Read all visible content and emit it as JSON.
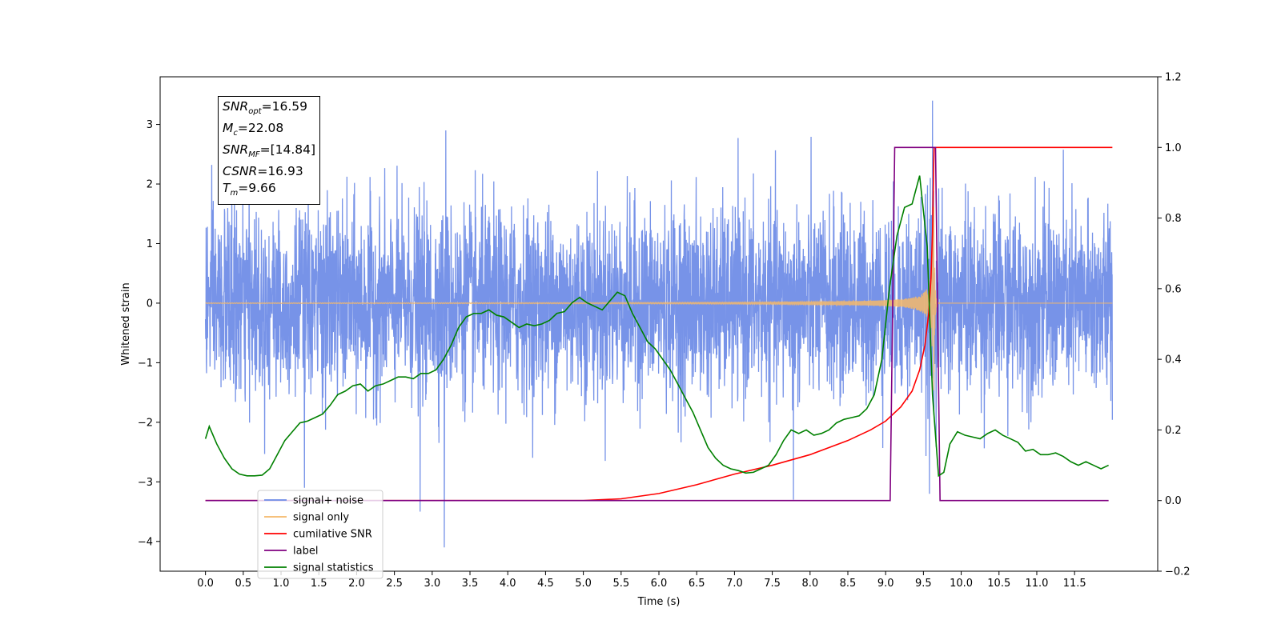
{
  "chart_data": {
    "type": "line",
    "xlabel": "Time (s)",
    "ylabel_left": "Whitened strain",
    "xlim": [
      -0.6,
      12.6
    ],
    "ylim_left": [
      -4.5,
      3.8
    ],
    "ylim_right": [
      -0.2,
      1.2
    ],
    "x_ticks": [
      0.0,
      0.5,
      1.0,
      1.5,
      2.0,
      2.5,
      3.0,
      3.5,
      4.0,
      4.5,
      5.0,
      5.5,
      6.0,
      6.5,
      7.0,
      7.5,
      8.0,
      8.5,
      9.0,
      9.5,
      10.0,
      10.5,
      11.0,
      11.5
    ],
    "x_tick_labels": [
      "0.0",
      "0.5",
      "1.0",
      "1.5",
      "2.0",
      "2.5",
      "3.0",
      "3.5",
      "4.0",
      "4.5",
      "5.0",
      "5.5",
      "6.0",
      "6.5",
      "7.0",
      "7.5",
      "8.0",
      "8.5",
      "9.0",
      "9.5",
      "10.0",
      "10.5",
      "11.0",
      "11.5"
    ],
    "y_left_ticks": [
      -4,
      -3,
      -2,
      -1,
      0,
      1,
      2,
      3
    ],
    "y_left_tick_labels": [
      "−4",
      "−3",
      "−2",
      "−1",
      "0",
      "1",
      "2",
      "3"
    ],
    "y_right_ticks": [
      -0.2,
      0.0,
      0.2,
      0.4,
      0.6,
      0.8,
      1.0,
      1.2
    ],
    "y_right_tick_labels": [
      "−0.2",
      "0.0",
      "0.2",
      "0.4",
      "0.6",
      "0.8",
      "1.0",
      "1.2"
    ],
    "grid": false,
    "legend_position": "bottom-left",
    "colors": {
      "noise": "#6b8ae6",
      "signal": "#f5b86a",
      "cumsnr": "#ff0000",
      "label": "#800080",
      "stats": "#008000"
    },
    "series": [
      {
        "name": "signal+ noise",
        "axis": "left",
        "color": "#6b8ae6",
        "t_start": 0.0,
        "t_end": 12.0,
        "envelope_approx": [
          -2.0,
          2.0
        ],
        "min": -4.1,
        "max": 3.4
      },
      {
        "name": "signal only",
        "axis": "left",
        "color": "#f5b86a",
        "t_start": 0.0,
        "t_end": 12.0,
        "merger_time": 9.63,
        "peak": 3.15,
        "trough": -3.25
      },
      {
        "name": "cumilative SNR",
        "axis": "right",
        "color": "#ff0000",
        "x": [
          0.0,
          5.0,
          5.5,
          6.0,
          6.5,
          7.0,
          7.5,
          8.0,
          8.5,
          8.8,
          9.0,
          9.2,
          9.35,
          9.45,
          9.52,
          9.57,
          9.6,
          9.62,
          9.64,
          12.0
        ],
        "y": [
          0.0,
          0.0,
          0.005,
          0.02,
          0.045,
          0.075,
          0.1,
          0.13,
          0.17,
          0.2,
          0.225,
          0.265,
          0.31,
          0.37,
          0.44,
          0.53,
          0.63,
          0.76,
          1.0,
          1.0
        ]
      },
      {
        "name": "label",
        "axis": "right",
        "color": "#800080",
        "x": [
          0.0,
          9.06,
          9.12,
          9.66,
          9.72,
          11.95
        ],
        "y": [
          0.0,
          0.0,
          1.0,
          1.0,
          0.0,
          0.0
        ]
      },
      {
        "name": "signal statistics",
        "axis": "right",
        "color": "#008000",
        "x": [
          0.0,
          0.05,
          0.15,
          0.25,
          0.35,
          0.45,
          0.55,
          0.65,
          0.75,
          0.85,
          0.95,
          1.05,
          1.15,
          1.25,
          1.35,
          1.45,
          1.55,
          1.65,
          1.75,
          1.85,
          1.95,
          2.05,
          2.15,
          2.25,
          2.35,
          2.45,
          2.55,
          2.65,
          2.75,
          2.85,
          2.95,
          3.05,
          3.15,
          3.25,
          3.35,
          3.45,
          3.55,
          3.65,
          3.75,
          3.85,
          3.95,
          4.05,
          4.15,
          4.25,
          4.35,
          4.45,
          4.55,
          4.65,
          4.75,
          4.85,
          4.95,
          5.05,
          5.15,
          5.25,
          5.35,
          5.45,
          5.55,
          5.65,
          5.75,
          5.85,
          5.95,
          6.05,
          6.15,
          6.25,
          6.35,
          6.45,
          6.55,
          6.65,
          6.75,
          6.85,
          6.95,
          7.05,
          7.15,
          7.25,
          7.35,
          7.45,
          7.55,
          7.65,
          7.75,
          7.85,
          7.95,
          8.05,
          8.15,
          8.25,
          8.35,
          8.45,
          8.55,
          8.65,
          8.75,
          8.85,
          8.95,
          9.05,
          9.15,
          9.25,
          9.35,
          9.45,
          9.55,
          9.62,
          9.7,
          9.77,
          9.85,
          9.95,
          10.05,
          10.15,
          10.25,
          10.35,
          10.45,
          10.55,
          10.65,
          10.75,
          10.85,
          10.95,
          11.05,
          11.15,
          11.25,
          11.35,
          11.45,
          11.55,
          11.65,
          11.75,
          11.85,
          11.95
        ],
        "y": [
          0.175,
          0.21,
          0.16,
          0.12,
          0.09,
          0.075,
          0.07,
          0.07,
          0.072,
          0.09,
          0.13,
          0.17,
          0.195,
          0.22,
          0.225,
          0.235,
          0.245,
          0.27,
          0.3,
          0.31,
          0.325,
          0.33,
          0.31,
          0.325,
          0.33,
          0.34,
          0.35,
          0.35,
          0.345,
          0.36,
          0.36,
          0.37,
          0.4,
          0.44,
          0.49,
          0.52,
          0.53,
          0.53,
          0.54,
          0.525,
          0.52,
          0.505,
          0.49,
          0.5,
          0.495,
          0.5,
          0.51,
          0.53,
          0.535,
          0.56,
          0.575,
          0.56,
          0.55,
          0.54,
          0.565,
          0.59,
          0.58,
          0.53,
          0.49,
          0.45,
          0.43,
          0.4,
          0.37,
          0.33,
          0.29,
          0.25,
          0.2,
          0.15,
          0.12,
          0.1,
          0.09,
          0.085,
          0.078,
          0.08,
          0.09,
          0.1,
          0.13,
          0.17,
          0.2,
          0.19,
          0.2,
          0.185,
          0.19,
          0.2,
          0.22,
          0.23,
          0.235,
          0.24,
          0.26,
          0.3,
          0.4,
          0.6,
          0.75,
          0.83,
          0.84,
          0.92,
          0.72,
          0.3,
          0.07,
          0.08,
          0.16,
          0.195,
          0.185,
          0.18,
          0.175,
          0.19,
          0.2,
          0.185,
          0.175,
          0.165,
          0.14,
          0.145,
          0.13,
          0.13,
          0.135,
          0.125,
          0.11,
          0.1,
          0.11,
          0.1,
          0.09,
          0.1
        ]
      }
    ]
  },
  "stats_box": {
    "snr_opt": {
      "var": "SNR",
      "sub": "opt",
      "value": "=16.59"
    },
    "mc": {
      "var": "M",
      "sub": "c",
      "value": "=22.08"
    },
    "snr_mf": {
      "var": "SNR",
      "sub": "MF",
      "value": "=[14.84]"
    },
    "csnr": {
      "var": "CSNR",
      "value": "=16.93"
    },
    "tm": {
      "var": "T",
      "sub": "m",
      "value": "=9.66"
    }
  },
  "legend": {
    "items": [
      {
        "label": "signal+ noise",
        "color": "#6b8ae6"
      },
      {
        "label": "signal only",
        "color": "#f5b86a"
      },
      {
        "label": "cumilative SNR",
        "color": "#ff0000"
      },
      {
        "label": "label",
        "color": "#800080"
      },
      {
        "label": "signal statistics",
        "color": "#008000"
      }
    ]
  }
}
